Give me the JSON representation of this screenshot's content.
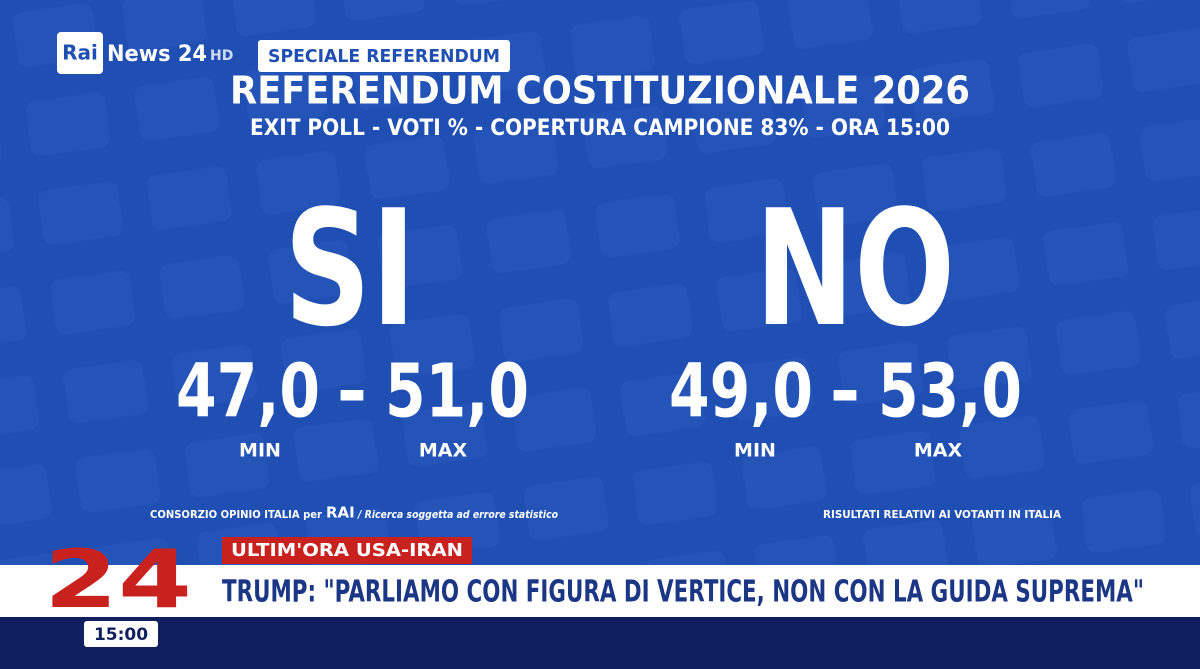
{
  "logo": {
    "brand": "Rai",
    "channel": "News 24",
    "quality": "HD"
  },
  "tag": "SPECIALE REFERENDUM",
  "title": "REFERENDUM COSTITUZIONALE 2026",
  "subtitle": "EXIT POLL - VOTI % - COPERTURA CAMPIONE 83% - ORA 15:00",
  "options": [
    {
      "label": "SI",
      "min": "47,0",
      "separator": "-",
      "max": "51,0",
      "min_label": "MIN",
      "max_label": "MAX"
    },
    {
      "label": "NO",
      "min": "49,0",
      "separator": "-",
      "max": "53,0",
      "min_label": "MIN",
      "max_label": "MAX"
    }
  ],
  "source": {
    "text": "CONSORZIO OPINIO ITALIA per",
    "brand": "RAI",
    "note": "/ Ricerca soggetta ad errore statistico"
  },
  "footnote": "RISULTATI RELATIVI AI VOTANTI IN ITALIA",
  "ticker": {
    "tag": "ULTIM'ORA USA-IRAN",
    "logo": "24",
    "headline": "TRUMP: \"PARLIAMO CON FIGURA DI VERTICE, NON CON LA GUIDA SUPREMA\"",
    "time": "15:00"
  }
}
